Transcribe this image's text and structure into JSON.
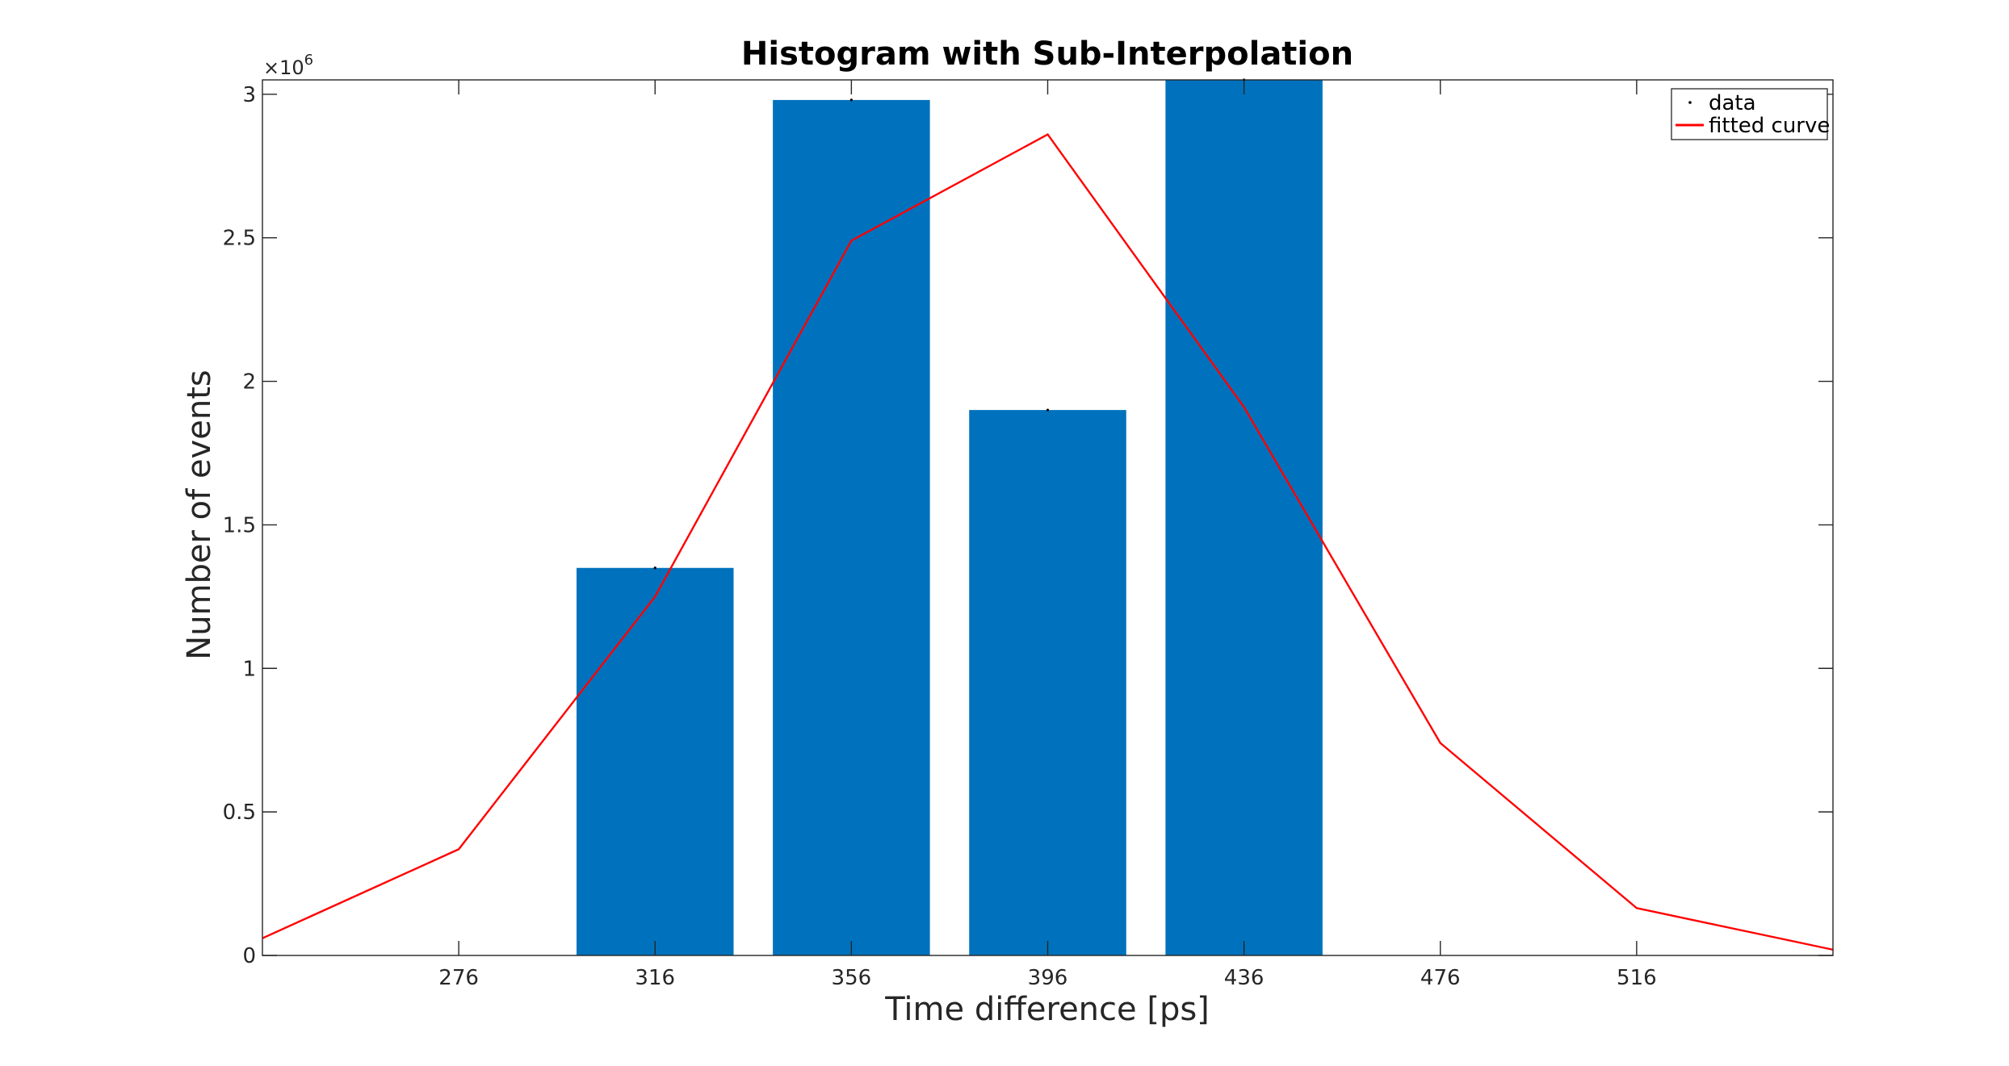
{
  "chart_data": {
    "type": "bar",
    "title": "Histogram with Sub-Interpolation",
    "xlabel": "Time difference [ps]",
    "ylabel": "Number of events",
    "xlim": [
      236,
      556
    ],
    "ylim": [
      0,
      3050000
    ],
    "x_ticks": [
      276,
      316,
      356,
      396,
      436,
      476,
      516
    ],
    "x_tick_labels": [
      "276",
      "316",
      "356",
      "396",
      "436",
      "476",
      "516"
    ],
    "y_ticks": [
      0,
      500000,
      1000000,
      1500000,
      2000000,
      2500000,
      3000000
    ],
    "y_tick_labels": [
      "0",
      "0.5",
      "1",
      "1.5",
      "2",
      "2.5",
      "3"
    ],
    "y_exponent_base": "×10",
    "y_exponent_power": "6",
    "grid": false,
    "legend_position": "top-right",
    "bar_width": 32,
    "series": [
      {
        "name": "data",
        "type": "bar",
        "color": "#0072BD",
        "x": [
          316,
          356,
          396,
          436
        ],
        "values": [
          1350000,
          2980000,
          1900000,
          3050000
        ]
      },
      {
        "name": "fitted curve",
        "type": "line",
        "color": "#FF0000",
        "x": [
          236,
          276,
          316,
          356,
          396,
          436,
          476,
          516,
          556
        ],
        "values": [
          60000,
          370000,
          1250000,
          2490000,
          2860000,
          1910000,
          740000,
          165000,
          20000
        ]
      }
    ]
  }
}
